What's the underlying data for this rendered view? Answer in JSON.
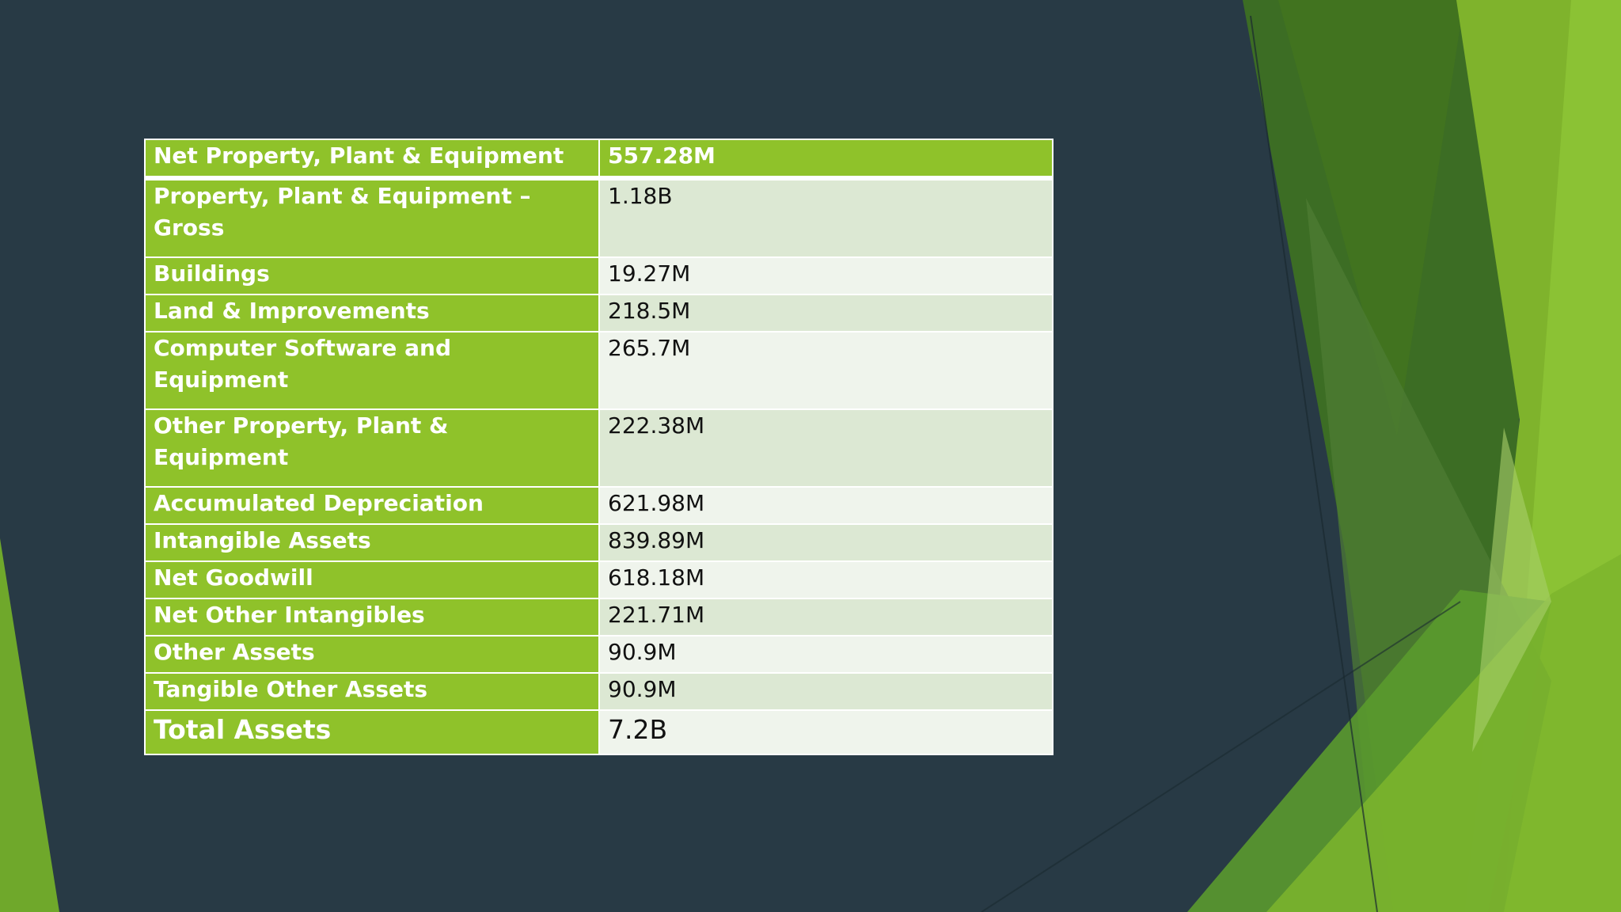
{
  "slide": {
    "accent_color": "#8fc22a",
    "background_color": "#283a45",
    "rows": [
      {
        "label": "Net Property, Plant & Equipment",
        "value": "557.28M"
      },
      {
        "label": "Property, Plant & Equipment – Gross",
        "value": "1.18B"
      },
      {
        "label": "Buildings",
        "value": "19.27M"
      },
      {
        "label": "Land & Improvements",
        "value": "218.5M"
      },
      {
        "label": "Computer Software and Equipment",
        "value": "265.7M"
      },
      {
        "label": "Other Property, Plant & Equipment",
        "value": "222.38M"
      },
      {
        "label": "Accumulated Depreciation",
        "value": "621.98M"
      },
      {
        "label": "Intangible Assets",
        "value": "839.89M"
      },
      {
        "label": "Net Goodwill",
        "value": "618.18M"
      },
      {
        "label": "Net Other Intangibles",
        "value": "221.71M"
      },
      {
        "label": "Other Assets",
        "value": "90.9M"
      },
      {
        "label": "Tangible Other Assets",
        "value": "90.9M"
      },
      {
        "label": "Total Assets",
        "value": "7.2B"
      }
    ]
  }
}
